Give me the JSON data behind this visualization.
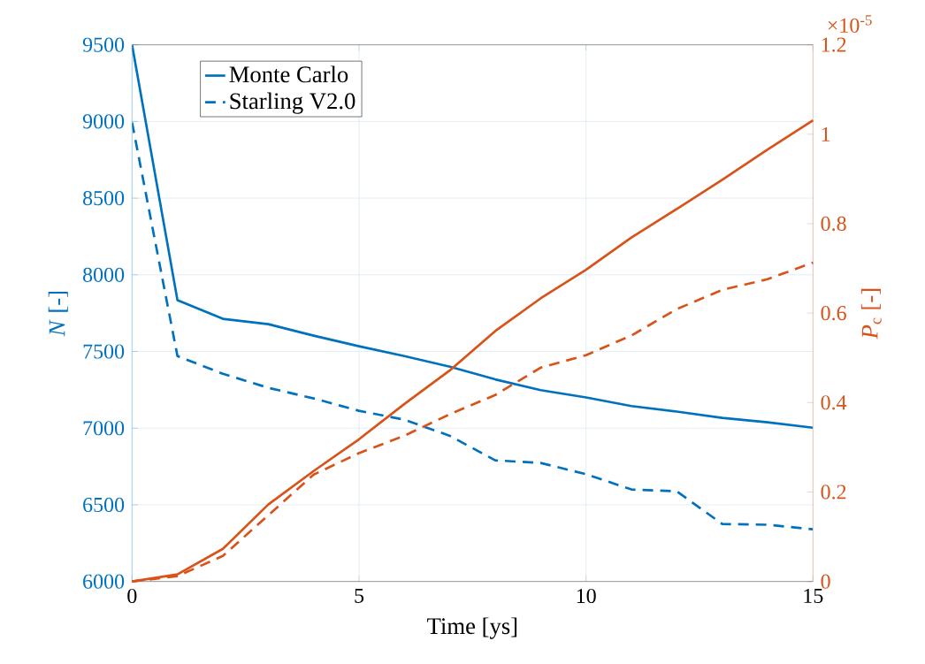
{
  "chart_data": {
    "type": "line",
    "xlabel": "Time [ys]",
    "ylabel": "*N* [-]",
    "y2label": "*P*$_{c}$ [-]",
    "annotations": [
      "×10$^{-5}$"
    ],
    "x": [
      0,
      1,
      2,
      3,
      4,
      5,
      6,
      7,
      8,
      9,
      10,
      11,
      12,
      13,
      14,
      15
    ],
    "series": [
      {
        "name": "Monte Carlo",
        "color": "#0072bd",
        "line_style": "solid",
        "values": [
          9500,
          7834,
          7713,
          7678,
          7603,
          7534,
          7470,
          7401,
          7318,
          7248,
          7200,
          7144,
          7108,
          7067,
          7038,
          7003
        ]
      },
      {
        "name": "Starling V2.0",
        "color": "#0072bd",
        "line_style": "dashed",
        "values": [
          8993,
          7470,
          7355,
          7263,
          7194,
          7113,
          7055,
          6950,
          6790,
          6773,
          6700,
          6600,
          6588,
          6375,
          6370,
          6340
        ]
      },
      {
        "color": "#d95319",
        "line_style": "solid",
        "axis": "y2",
        "values": [
          0,
          0.016,
          0.073,
          0.172,
          0.247,
          0.318,
          0.397,
          0.472,
          0.56,
          0.633,
          0.697,
          0.769,
          0.833,
          0.898,
          0.966,
          1.031
        ]
      },
      {
        "color": "#d95319",
        "line_style": "dashed",
        "axis": "y2",
        "values": [
          0,
          0.012,
          0.057,
          0.148,
          0.239,
          0.287,
          0.326,
          0.374,
          0.417,
          0.478,
          0.506,
          0.55,
          0.609,
          0.652,
          0.676,
          0.713
        ]
      }
    ],
    "xlim": [
      0,
      15
    ],
    "xticks": [
      0,
      5,
      10,
      15
    ],
    "ylim": [
      6000,
      9500
    ],
    "yticks": [
      6000,
      6500,
      7000,
      7500,
      8000,
      8500,
      9000,
      9500
    ],
    "y2lim": [
      0,
      1.2
    ],
    "y2ticks": [
      0,
      0.2,
      0.4,
      0.6,
      0.8,
      1,
      1.2
    ],
    "grid": true,
    "legend": "top left"
  }
}
